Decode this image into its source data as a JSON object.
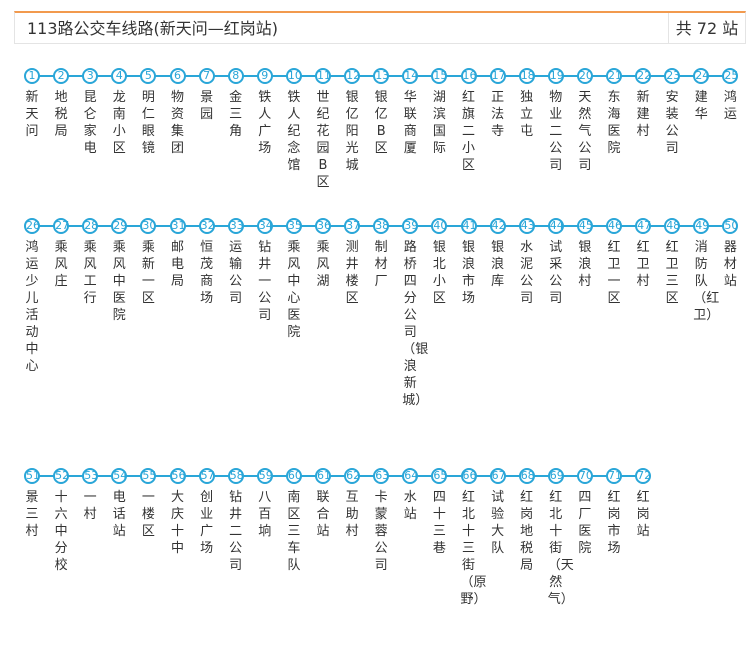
{
  "header": {
    "title": "113路公交车线路(新天问—红岗站)",
    "count": "共 72 站"
  },
  "colors": {
    "accent": "#2aa6d8",
    "top_border": "#f29a4e"
  },
  "stops": [
    "新天问",
    "地税局",
    "昆仑家电",
    "龙南小区",
    "明仁眼镜",
    "物资集团",
    "景园",
    "金三角",
    "铁人广场",
    "铁人纪念馆",
    "世纪花园B区",
    "银亿阳光城",
    "银亿B区",
    "华联商厦",
    "湖滨国际",
    "红旗二小区",
    "正法寺",
    "独立屯",
    "物业二公司",
    "天然气公司",
    "东海医院",
    "新建村",
    "安装公司",
    "建华",
    "鸿运",
    "鸿运少儿活动中心",
    "乘风庄",
    "乘风工行",
    "乘风中医院",
    "乘新一区",
    "邮电局",
    "恒茂商场",
    "运输公司",
    "钻井一公司",
    "乘风中心医院",
    "乘风湖",
    "测井楼区",
    "制材厂",
    "路桥四分公司（银浪新城）",
    "银北小区",
    "银浪市场",
    "银浪库",
    "水泥公司",
    "试采公司",
    "银浪村",
    "红卫一区",
    "红卫村",
    "红卫三区",
    "消防队（红卫）",
    "器材站",
    "景三村",
    "十六中分校",
    "一村",
    "电话站",
    "一楼区",
    "大庆十中",
    "创业广场",
    "钻井二公司",
    "八百垧",
    "南区三车队",
    "联合站",
    "互助村",
    "卡蒙蓉公司",
    "水站",
    "四十三巷",
    "红北十三街（原野）",
    "试验大队",
    "红岗地税局",
    "红北十街（天然气）",
    "四厂医院",
    "红岗市场",
    "红岗站"
  ]
}
